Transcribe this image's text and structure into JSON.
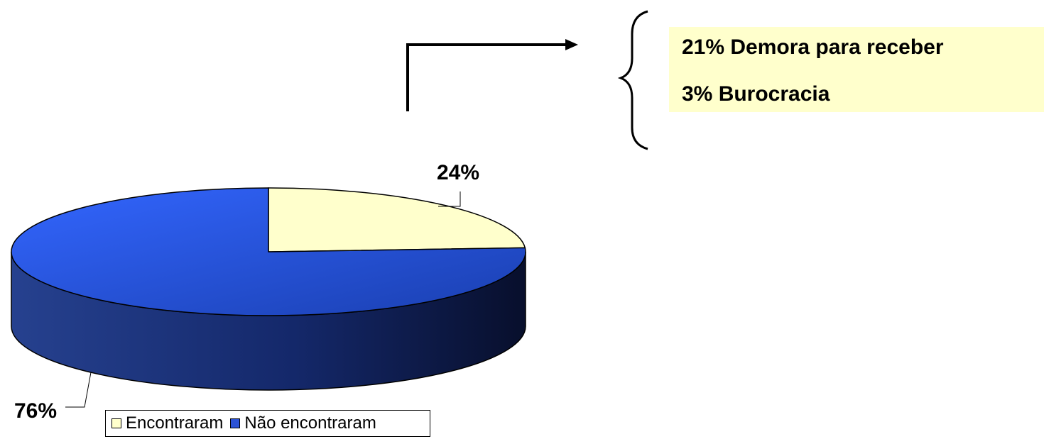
{
  "chart_data": {
    "type": "pie",
    "title": "",
    "slices": [
      {
        "label": "Encontraram",
        "value": 24,
        "data_label": "24%",
        "color": "#ffffcc"
      },
      {
        "label": "Não encontraram",
        "value": 76,
        "data_label": "76%",
        "color": "#2b52d6"
      }
    ],
    "legend_position": "bottom"
  },
  "callout": {
    "lines": [
      "21% Demora para receber",
      "3% Burocracia"
    ],
    "background": "#ffffcc"
  }
}
